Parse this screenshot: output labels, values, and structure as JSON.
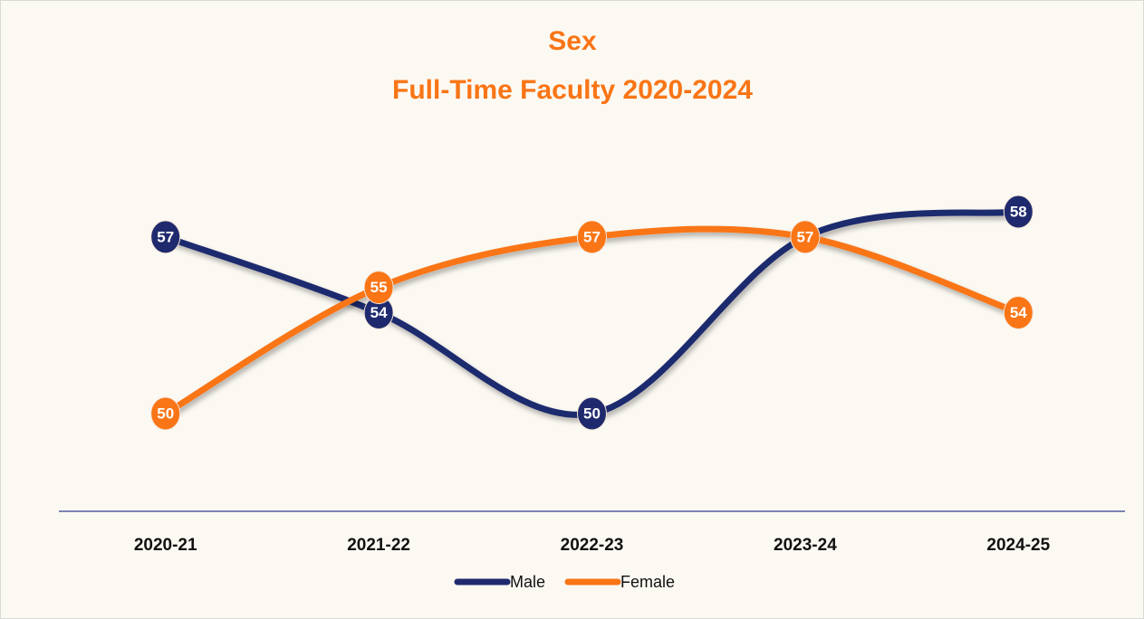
{
  "chart_data": {
    "type": "line",
    "title": "Sex",
    "subtitle": "Full-Time Faculty 2020-2024",
    "categories": [
      "2020-21",
      "2021-22",
      "2022-23",
      "2023-24",
      "2024-25"
    ],
    "series": [
      {
        "name": "Male",
        "color": "#1f2a6e",
        "values": [
          57,
          54,
          50,
          57,
          58
        ]
      },
      {
        "name": "Female",
        "color": "#f97516",
        "values": [
          50,
          55,
          57,
          57,
          54
        ]
      }
    ],
    "smooth": true,
    "grid": false
  }
}
